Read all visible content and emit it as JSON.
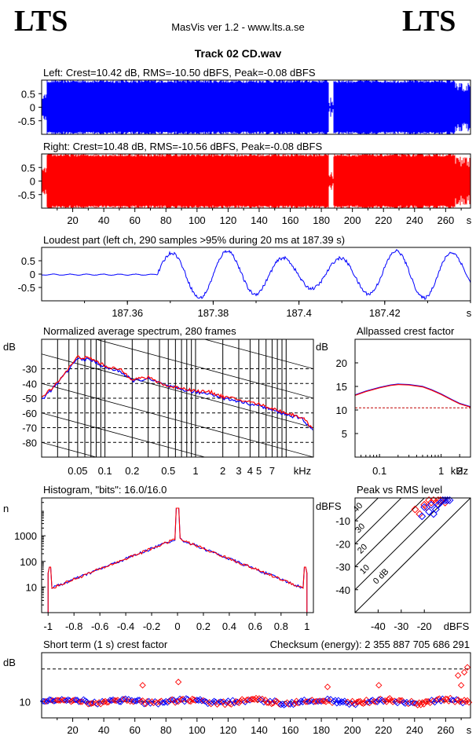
{
  "header": {
    "logo_left": "LTS",
    "logo_right": "LTS",
    "app_title": "MasVis ver 1.2 - www.lts.a.se",
    "track_title": "Track 02 CD.wav"
  },
  "colors": {
    "left": "#0000ff",
    "right": "#ff0000",
    "grid": "#000000",
    "bg": "#ffffff"
  },
  "chart_data": [
    {
      "id": "left",
      "type": "area",
      "title": "Left: Crest=10.42 dB, RMS=-10.50 dBFS, Peak=-0.08 dBFS",
      "xlim": [
        0,
        276
      ],
      "ylim": [
        -1,
        1
      ],
      "yticks": [
        "0.5",
        "0",
        "-0.5"
      ],
      "ytick_values": [
        0.5,
        0,
        -0.5
      ],
      "series": [
        {
          "color": "#0000ff"
        }
      ]
    },
    {
      "id": "right",
      "type": "area",
      "title": "Right: Crest=10.48 dB, RMS=-10.56 dBFS, Peak=-0.08 dBFS",
      "xlim": [
        0,
        276
      ],
      "ylim": [
        -1,
        1
      ],
      "yticks": [
        "0.5",
        "0",
        "-0.5"
      ],
      "ytick_values": [
        0.5,
        0,
        -0.5
      ],
      "xticks": [
        "20",
        "40",
        "60",
        "80",
        "100",
        "120",
        "140",
        "160",
        "180",
        "200",
        "220",
        "240",
        "260"
      ],
      "xtick_values": [
        20,
        40,
        60,
        80,
        100,
        120,
        140,
        160,
        180,
        200,
        220,
        240,
        260
      ],
      "xunit": "s",
      "series": [
        {
          "color": "#ff0000"
        }
      ]
    },
    {
      "id": "loudest",
      "type": "line",
      "title": "Loudest part (left  ch, 290 samples >95% during 20 ms at 187.39 s)",
      "xlim": [
        187.34,
        187.44
      ],
      "ylim": [
        -1,
        1
      ],
      "yticks": [
        "0.5",
        "0",
        "-0.5"
      ],
      "ytick_values": [
        0.5,
        0,
        -0.5
      ],
      "xticks": [
        "187.36",
        "187.38",
        "187.4",
        "187.42"
      ],
      "xtick_values": [
        187.36,
        187.38,
        187.4,
        187.42
      ],
      "xunit": "s"
    },
    {
      "id": "spectrum",
      "type": "line",
      "title": "Normalized average spectrum, 280 frames",
      "ylabel": "dB",
      "ylim": [
        -90,
        -10
      ],
      "yticks": [
        "-30",
        "-40",
        "-50",
        "-60",
        "-70",
        "-80"
      ],
      "ytick_values": [
        -30,
        -40,
        -50,
        -60,
        -70,
        -80
      ],
      "xticks": [
        "0.05",
        "0.1",
        "0.2",
        "0.5",
        "1",
        "2",
        "3",
        "4",
        "5",
        "7"
      ],
      "xtick_values": [
        0.05,
        0.1,
        0.2,
        0.5,
        1,
        2,
        3,
        4,
        5,
        7
      ],
      "xunit": "kHz",
      "xscale": "log",
      "xlim": [
        0.02,
        20
      ],
      "x": [
        0.02,
        0.03,
        0.05,
        0.07,
        0.1,
        0.15,
        0.2,
        0.3,
        0.5,
        0.7,
        1,
        1.5,
        2,
        3,
        5,
        7,
        10,
        15,
        20
      ],
      "series": [
        {
          "color": "#0000ff",
          "values": [
            -51,
            -40,
            -23,
            -24,
            -29,
            -32,
            -38,
            -37,
            -42,
            -44,
            -46,
            -47,
            -50,
            -52,
            -55,
            -58,
            -61,
            -64,
            -72
          ]
        },
        {
          "color": "#ff0000",
          "values": [
            -50,
            -39,
            -22,
            -23,
            -28,
            -31,
            -37,
            -36,
            -42,
            -43,
            -45,
            -46,
            -49,
            -51,
            -54,
            -57,
            -60,
            -63,
            -71
          ]
        }
      ]
    },
    {
      "id": "crest",
      "type": "line",
      "title": "Allpassed crest factor",
      "ylabel": "dB",
      "ylim": [
        0,
        25
      ],
      "yticks": [
        "20",
        "15",
        "10",
        "5"
      ],
      "ytick_values": [
        20,
        15,
        10,
        5
      ],
      "xticks": [
        "0.1",
        "1",
        "2"
      ],
      "xtick_values": [
        0.1,
        1,
        2
      ],
      "xunit": "kHz",
      "xscale": "log",
      "xlim": [
        0.04,
        3
      ],
      "x": [
        0.04,
        0.06,
        0.1,
        0.15,
        0.2,
        0.3,
        0.5,
        0.7,
        1,
        1.5,
        2,
        3
      ],
      "reference": 10.45,
      "series": [
        {
          "color": "#0000ff",
          "values": [
            13.2,
            14.0,
            14.8,
            15.3,
            15.5,
            15.4,
            15.0,
            14.3,
            13.4,
            12.2,
            11.4,
            10.7
          ]
        },
        {
          "color": "#ff0000",
          "values": [
            13.1,
            13.9,
            14.7,
            15.2,
            15.4,
            15.3,
            14.9,
            14.2,
            13.3,
            12.1,
            11.3,
            10.6
          ]
        }
      ]
    },
    {
      "id": "histogram",
      "type": "line",
      "title": "Histogram, \"bits\": 16.0/16.0",
      "ylabel": "n",
      "yscale": "log",
      "ylim": [
        1,
        30000
      ],
      "yticks": [
        "1000",
        "100",
        "10"
      ],
      "ytick_values": [
        1000,
        100,
        10
      ],
      "xticks": [
        "-1",
        "-0.8",
        "-0.6",
        "-0.4",
        "-0.2",
        "0",
        "0.2",
        "0.4",
        "0.6",
        "0.8",
        "1"
      ],
      "xtick_values": [
        -1,
        -0.8,
        -0.6,
        -0.4,
        -0.2,
        0,
        0.2,
        0.4,
        0.6,
        0.8,
        1
      ],
      "xlim": [
        -1.05,
        1.05
      ]
    },
    {
      "id": "peak_rms",
      "type": "scatter",
      "title": "Peak vs RMS level",
      "ylabel": "dBFS",
      "ylim": [
        -50,
        0
      ],
      "yticks": [
        "-10",
        "-20",
        "-30",
        "-40"
      ],
      "ytick_values": [
        -10,
        -20,
        -30,
        -40
      ],
      "xticks": [
        "-40",
        "-30",
        "-20"
      ],
      "xtick_values": [
        -40,
        -30,
        -20
      ],
      "xlabel": "dBFS",
      "xlim": [
        -50,
        0
      ],
      "diagonals": [
        {
          "label": "0 dB",
          "offset": 0
        },
        {
          "label": "10",
          "offset": 10
        },
        {
          "label": "20",
          "offset": 20
        },
        {
          "label": "30",
          "offset": 30
        },
        {
          "label": "40",
          "offset": 40
        }
      ],
      "points_left": [
        [
          -20,
          -4
        ],
        [
          -18,
          -6
        ],
        [
          -16,
          -7
        ],
        [
          -15,
          -5
        ],
        [
          -14,
          -3
        ],
        [
          -13,
          -2
        ],
        [
          -12,
          -1
        ],
        [
          -11,
          -1
        ],
        [
          -10,
          -1
        ],
        [
          -9,
          -1
        ],
        [
          -21,
          -8
        ],
        [
          -17,
          -3
        ]
      ],
      "points_right": [
        [
          -24,
          -5
        ],
        [
          -20,
          -3
        ],
        [
          -19,
          -4
        ],
        [
          -17,
          -2
        ],
        [
          -15,
          -2
        ],
        [
          -14,
          -1
        ],
        [
          -13,
          -1
        ],
        [
          -12,
          -1
        ],
        [
          -11,
          -2
        ],
        [
          -10,
          -1
        ],
        [
          -22,
          -7
        ],
        [
          -16,
          -1
        ],
        [
          -18,
          -1
        ]
      ]
    },
    {
      "id": "short_crest",
      "type": "scatter",
      "title": "Short term (1 s) crest factor",
      "checksum": "Checksum (energy):  2 355 887 705 686 291",
      "ylabel": "dB",
      "ylim": [
        5,
        25
      ],
      "yticks": [
        "10"
      ],
      "ytick_values": [
        10
      ],
      "dashed_lines": [
        10,
        20
      ],
      "xticks": [
        "20",
        "40",
        "60",
        "80",
        "100",
        "120",
        "140",
        "160",
        "180",
        "200",
        "220",
        "240",
        "260"
      ],
      "xtick_values": [
        20,
        40,
        60,
        80,
        100,
        120,
        140,
        160,
        180,
        200,
        220,
        240,
        260
      ],
      "xunit": "s",
      "xlim": [
        0,
        276
      ],
      "outliers": [
        [
          65,
          15
        ],
        [
          88,
          16
        ],
        [
          184,
          14.5
        ],
        [
          217,
          15
        ],
        [
          268,
          18
        ],
        [
          272,
          19
        ],
        [
          274,
          20.5
        ],
        [
          270,
          15
        ]
      ]
    }
  ]
}
